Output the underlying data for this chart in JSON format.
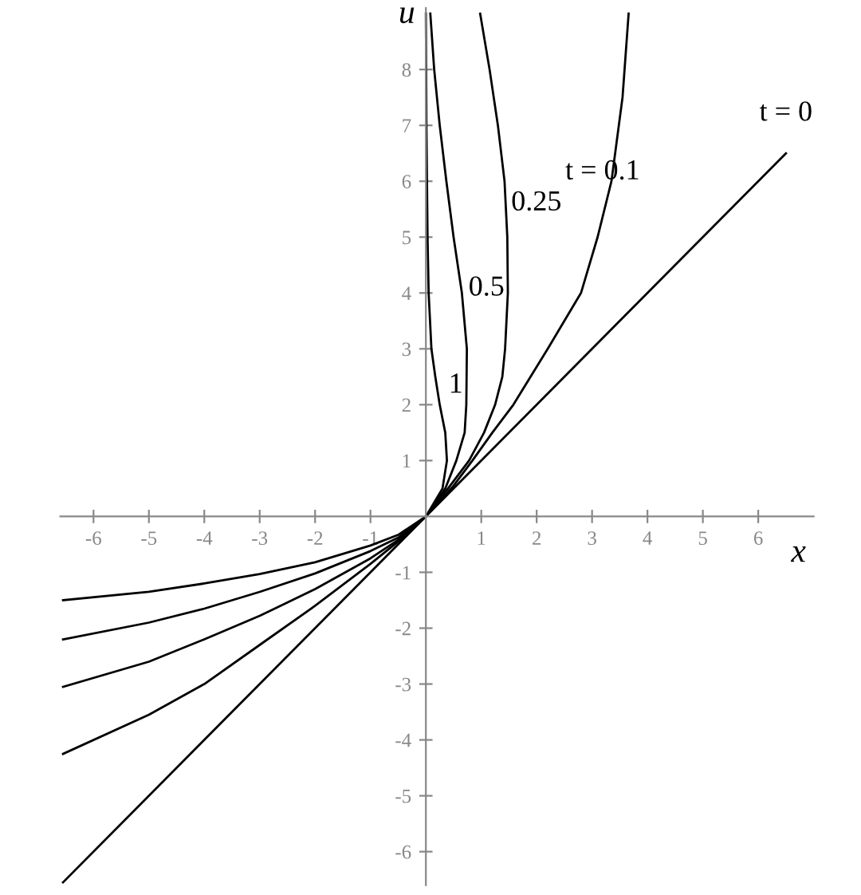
{
  "chart_data": {
    "type": "line",
    "xlabel": "x",
    "ylabel": "u",
    "xlim": [
      -6.6,
      7.0
    ],
    "ylim": [
      -6.6,
      9.1
    ],
    "xticks": [
      -6,
      -5,
      -4,
      -3,
      -2,
      -1,
      1,
      2,
      3,
      4,
      5,
      6
    ],
    "yticks": [
      -6,
      -5,
      -4,
      -3,
      -2,
      -1,
      1,
      2,
      3,
      4,
      5,
      6,
      7,
      8
    ],
    "grid": false,
    "legend": false,
    "marker": "none",
    "line_style": "solid",
    "series": [
      {
        "name": "t = 0",
        "color": "#000000",
        "x": [
          -6.55,
          6.5
        ],
        "values": [
          -6.55,
          6.5
        ]
      },
      {
        "name": "t = 0.1",
        "color": "#000000",
        "x": [
          -6.55,
          -5,
          -4,
          -3,
          -2,
          -1,
          -0.5,
          0,
          0.5,
          0.84,
          1.2,
          1.58,
          2.2,
          2.8,
          3.1,
          3.35,
          3.55,
          3.66
        ],
        "values": [
          -4.25,
          -3.55,
          -3.0,
          -2.3,
          -1.6,
          -0.85,
          -0.45,
          0,
          0.55,
          1,
          1.5,
          2,
          3,
          4,
          5,
          6,
          7.5,
          9
        ]
      },
      {
        "name": "0.25",
        "color": "#000000",
        "x": [
          -6.55,
          -5,
          -4,
          -3,
          -2,
          -1,
          -0.5,
          0,
          0.4,
          0.78,
          1.05,
          1.25,
          1.38,
          1.43,
          1.48,
          1.47,
          1.42,
          1.3,
          1.15,
          0.98
        ],
        "values": [
          -3.05,
          -2.6,
          -2.2,
          -1.78,
          -1.3,
          -0.75,
          -0.42,
          0,
          0.5,
          1,
          1.5,
          2,
          2.5,
          3,
          4,
          5,
          6,
          7,
          8,
          9
        ]
      },
      {
        "name": "0.5",
        "color": "#000000",
        "x": [
          -6.55,
          -5,
          -4,
          -3,
          -2,
          -1,
          -0.5,
          0,
          0.35,
          0.55,
          0.7,
          0.73,
          0.74,
          0.65,
          0.5,
          0.37,
          0.25,
          0.15,
          0.08
        ],
        "values": [
          -2.2,
          -1.9,
          -1.65,
          -1.35,
          -1.02,
          -0.62,
          -0.38,
          0,
          0.5,
          1,
          1.5,
          2,
          3,
          4,
          5,
          6,
          7,
          8,
          9
        ]
      },
      {
        "name": "1",
        "color": "#000000",
        "x": [
          -6.55,
          -5,
          -4,
          -3,
          -2,
          -1,
          -0.5,
          0,
          0.3,
          0.38,
          0.35,
          0.25,
          0.17,
          0.1,
          0.05,
          0.03,
          0.02,
          0.01,
          0.0
        ],
        "values": [
          -1.5,
          -1.35,
          -1.2,
          -1.03,
          -0.82,
          -0.52,
          -0.33,
          0,
          0.5,
          1,
          1.5,
          2,
          2.5,
          3,
          4,
          5,
          6,
          7,
          9
        ]
      }
    ]
  }
}
